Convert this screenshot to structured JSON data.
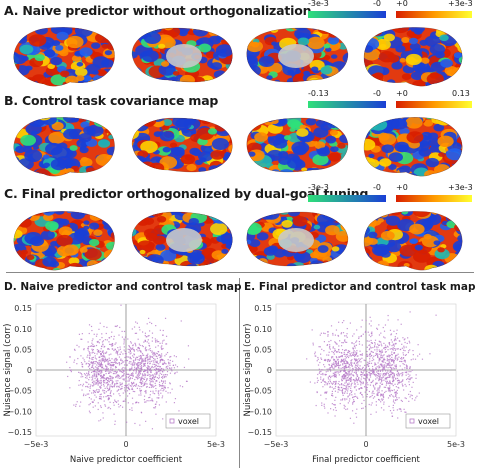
{
  "panels": [
    {
      "title": "A. Naive predictor without orthogonalization",
      "colorbar": {
        "neg_min": "-3e-3",
        "neg_max": "-0",
        "pos_min": "+0",
        "pos_max": "+3e-3"
      }
    },
    {
      "title": "B. Control task covariance map",
      "colorbar": {
        "neg_min": "-0.13",
        "neg_max": "-0",
        "pos_min": "+0",
        "pos_max": "0.13"
      }
    },
    {
      "title": "C. Final predictor orthogonalized by dual-goal tuning",
      "colorbar": {
        "neg_min": "-3e-3",
        "neg_max": "-0",
        "pos_min": "+0",
        "pos_max": "+3e-3"
      }
    }
  ],
  "brain_views": [
    "left-lateral",
    "left-medial",
    "right-medial",
    "right-lateral"
  ],
  "colors": {
    "neg_low": "#1a3fd6",
    "neg_high": "#2fe07a",
    "pos_low": "#d81f00",
    "pos_high": "#ffff30",
    "scatter": "#b67ac8",
    "cortex_gray": "#c9c9c9"
  },
  "chart_data": [
    {
      "type": "scatter",
      "title": "D. Naive predictor and control task map",
      "xlabel": "Naive predictor coefficient",
      "ylabel": "Nuisance signal (corr)",
      "xlim": [
        -0.005,
        0.005
      ],
      "ylim": [
        -0.16,
        0.16
      ],
      "xticks": [
        "−5e-3",
        "0",
        "5e-3"
      ],
      "yticks": [
        "0.15",
        "0.10",
        "0.05",
        "0",
        "−0.05",
        "−0.10",
        "−0.15"
      ],
      "legend": "voxel",
      "legend_position": "bottom-right",
      "series": [
        {
          "name": "voxel",
          "n_points": 1400,
          "clusters": [
            {
              "x_mean": -0.0012,
              "x_sd": 0.00075,
              "y_mean": 0.0,
              "y_sd": 0.045
            },
            {
              "x_mean": 0.0012,
              "x_sd": 0.00075,
              "y_mean": 0.0,
              "y_sd": 0.045
            }
          ]
        }
      ]
    },
    {
      "type": "scatter",
      "title": "E. Final predictor and control task map",
      "xlabel": "Final predictor coefficient",
      "ylabel": "Nuisance signal (corr)",
      "xlim": [
        -0.005,
        0.005
      ],
      "ylim": [
        -0.16,
        0.16
      ],
      "xticks": [
        "−5e-3",
        "0",
        "5e-3"
      ],
      "yticks": [
        "0.15",
        "0.10",
        "0.05",
        "0",
        "−0.05",
        "−0.10",
        "−0.15"
      ],
      "legend": "voxel",
      "legend_position": "bottom-right",
      "series": [
        {
          "name": "voxel",
          "n_points": 1400,
          "clusters": [
            {
              "x_mean": -0.0012,
              "x_sd": 0.0008,
              "y_mean": 0.0,
              "y_sd": 0.045
            },
            {
              "x_mean": 0.0012,
              "x_sd": 0.0008,
              "y_mean": 0.0,
              "y_sd": 0.045
            }
          ]
        }
      ]
    }
  ]
}
